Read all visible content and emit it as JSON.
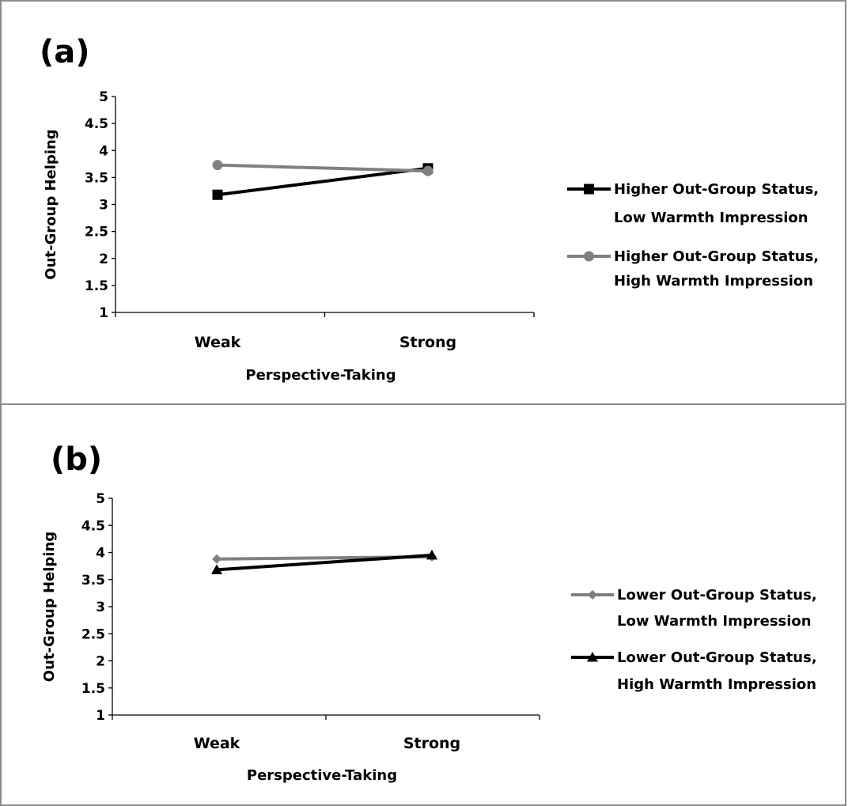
{
  "chart_data": [
    {
      "type": "line",
      "panel_label": "(a)",
      "categories": [
        "Weak",
        "Strong"
      ],
      "xlabel": "Perspective-Taking",
      "ylabel": "Out-Group Helping",
      "ylim": [
        1,
        5
      ],
      "yticks": [
        "1",
        "1.5",
        "2",
        "2.5",
        "3",
        "3.5",
        "4",
        "4.5",
        "5"
      ],
      "grid": false,
      "legend_position": "right",
      "series": [
        {
          "name_lines": [
            "Higher Out-Group Status,",
            "Low Warmth Impression"
          ],
          "values": [
            3.18,
            3.67
          ],
          "color": "#000000",
          "marker": "square"
        },
        {
          "name_lines": [
            "Higher Out-Group Status,",
            "High Warmth Impression"
          ],
          "values": [
            3.73,
            3.62
          ],
          "color": "#808080",
          "marker": "circle"
        }
      ]
    },
    {
      "type": "line",
      "panel_label": "(b)",
      "categories": [
        "Weak",
        "Strong"
      ],
      "xlabel": "Perspective-Taking",
      "ylabel": "Out-Group Helping",
      "ylim": [
        1,
        5
      ],
      "yticks": [
        "1",
        "1.5",
        "2",
        "2.5",
        "3",
        "3.5",
        "4",
        "4.5",
        "5"
      ],
      "grid": false,
      "legend_position": "right",
      "series": [
        {
          "name_lines": [
            "Lower Out-Group Status,",
            "Low Warmth Impression"
          ],
          "values": [
            3.88,
            3.92
          ],
          "color": "#808080",
          "marker": "diamond"
        },
        {
          "name_lines": [
            "Lower Out-Group Status,",
            "High Warmth Impression"
          ],
          "values": [
            3.68,
            3.95
          ],
          "color": "#000000",
          "marker": "triangle"
        }
      ]
    }
  ]
}
